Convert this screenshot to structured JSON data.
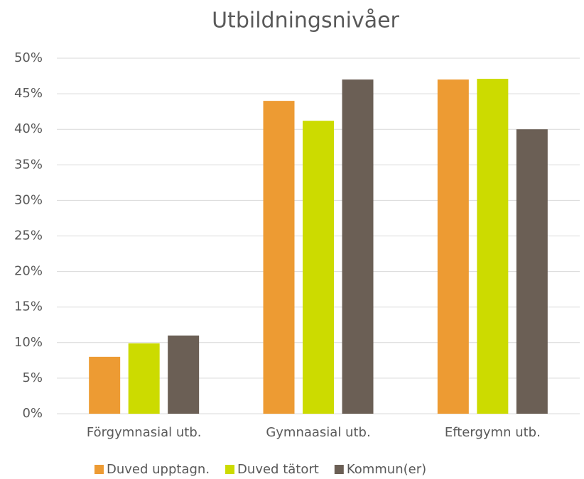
{
  "chart_data": {
    "type": "bar",
    "title": "Utbildningsnivåer",
    "categories": [
      "Förgymnasial utb.",
      "Gymnaasial utb.",
      "Eftergymn utb."
    ],
    "series": [
      {
        "name": "Duved upptagn.",
        "color": "#ED9B33",
        "values": [
          8,
          44,
          47
        ]
      },
      {
        "name": "Duved tätort",
        "color": "#CCDB00",
        "values": [
          9.9,
          41.2,
          47.1
        ]
      },
      {
        "name": "Kommun(er)",
        "color": "#6B5F55",
        "values": [
          11,
          47,
          40
        ]
      }
    ],
    "ylim": [
      0,
      50
    ],
    "yticks": [
      {
        "value": 0,
        "label": "0%"
      },
      {
        "value": 5,
        "label": "5%"
      },
      {
        "value": 10,
        "label": "10%"
      },
      {
        "value": 15,
        "label": "15%"
      },
      {
        "value": 20,
        "label": "20%"
      },
      {
        "value": 25,
        "label": "25%"
      },
      {
        "value": 30,
        "label": "30%"
      },
      {
        "value": 35,
        "label": "35%"
      },
      {
        "value": 40,
        "label": "40%"
      },
      {
        "value": 45,
        "label": "45%"
      },
      {
        "value": 50,
        "label": "50%"
      }
    ],
    "grid": true,
    "legend": "bottom"
  }
}
